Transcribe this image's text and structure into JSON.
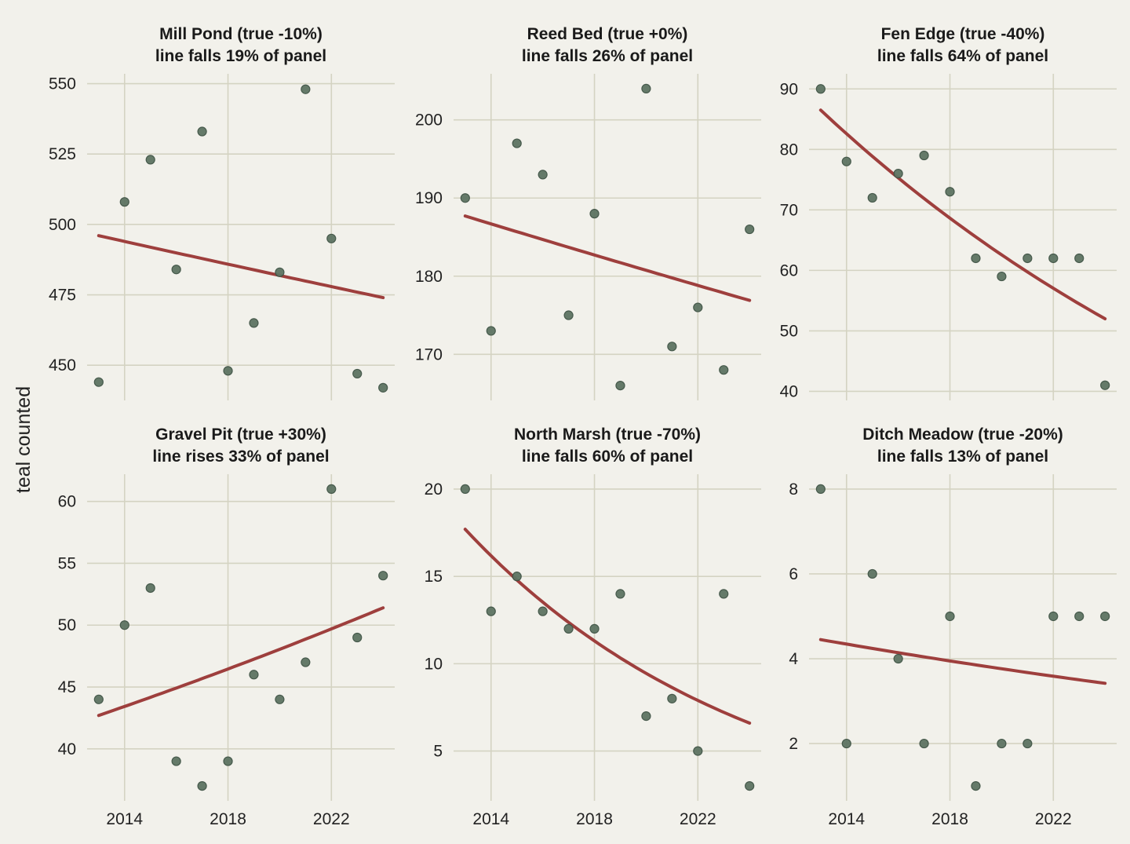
{
  "colors": {
    "background": "#f2f1eb",
    "grid": "#d4d3c2",
    "points": "#5e7463",
    "trend_line": "#9e3f3d"
  },
  "chart_data": {
    "type": "scatter",
    "ylabel": "teal counted",
    "grid": true,
    "x_ticks": [
      2014,
      2018,
      2022
    ],
    "panels": [
      {
        "title": "Mill Pond (true -10%)",
        "subtitle": "line falls 19% of panel",
        "x": [
          2013,
          2014,
          2015,
          2016,
          2017,
          2018,
          2019,
          2020,
          2021,
          2022,
          2023,
          2024
        ],
        "y": [
          444,
          508,
          523,
          484,
          533,
          448,
          465,
          483,
          548,
          495,
          447,
          442
        ],
        "trend": {
          "start": [
            2013,
            496
          ],
          "end": [
            2024,
            474
          ]
        },
        "yticks": [
          450,
          475,
          500,
          525,
          550
        ],
        "ylim": [
          437.5,
          553.5
        ]
      },
      {
        "title": "Reed Bed (true +0%)",
        "subtitle": "line falls 26% of panel",
        "x": [
          2013,
          2014,
          2015,
          2016,
          2017,
          2018,
          2019,
          2020,
          2021,
          2022,
          2023,
          2024
        ],
        "y": [
          190,
          173,
          197,
          193,
          175,
          188,
          166,
          204,
          171,
          176,
          168,
          186
        ],
        "trend": {
          "start": [
            2013,
            187.7
          ],
          "end": [
            2024,
            176.9
          ]
        },
        "yticks": [
          170,
          180,
          190,
          200
        ],
        "ylim": [
          164.1,
          205.9
        ]
      },
      {
        "title": "Fen Edge (true -40%)",
        "subtitle": "line falls 64% of panel",
        "x": [
          2013,
          2014,
          2015,
          2016,
          2017,
          2018,
          2019,
          2020,
          2021,
          2022,
          2023,
          2024
        ],
        "y": [
          90,
          78,
          72,
          76,
          79,
          73,
          62,
          59,
          62,
          62,
          62,
          41
        ],
        "trend": {
          "start": [
            2013,
            86.5
          ],
          "end": [
            2024,
            52
          ]
        },
        "yticks": [
          40,
          50,
          60,
          70,
          80,
          90
        ],
        "ylim": [
          38.5,
          92.5
        ]
      },
      {
        "title": "Gravel Pit (true +30%)",
        "subtitle": "line rises 33% of panel",
        "x": [
          2013,
          2014,
          2015,
          2016,
          2017,
          2018,
          2019,
          2020,
          2021,
          2022,
          2023,
          2024
        ],
        "y": [
          44,
          50,
          53,
          39,
          37,
          39,
          46,
          44,
          47,
          61,
          49,
          54
        ],
        "trend": {
          "start": [
            2013,
            42.7
          ],
          "end": [
            2024,
            51.4
          ]
        },
        "yticks": [
          40,
          45,
          50,
          55,
          60
        ],
        "ylim": [
          35.8,
          62.2
        ]
      },
      {
        "title": "North Marsh (true -70%)",
        "subtitle": "line falls 60% of panel",
        "x": [
          2013,
          2014,
          2015,
          2016,
          2017,
          2018,
          2019,
          2020,
          2021,
          2022,
          2023,
          2024
        ],
        "y": [
          20,
          13,
          15,
          13,
          12,
          12,
          14,
          7,
          8,
          5,
          14,
          3
        ],
        "trend": {
          "start": [
            2013,
            17.7
          ],
          "end": [
            2024,
            6.6
          ]
        },
        "yticks": [
          5,
          10,
          15,
          20
        ],
        "ylim": [
          2.15,
          20.85
        ]
      },
      {
        "title": "Ditch Meadow (true -20%)",
        "subtitle": "line falls 13% of panel",
        "x": [
          2013,
          2014,
          2015,
          2016,
          2017,
          2018,
          2019,
          2020,
          2021,
          2022,
          2023,
          2024
        ],
        "y": [
          8,
          2,
          6,
          4,
          2,
          5,
          1,
          2,
          2,
          5,
          5,
          5
        ],
        "trend": {
          "start": [
            2013,
            4.45
          ],
          "end": [
            2024,
            3.42
          ]
        },
        "yticks": [
          2,
          4,
          6,
          8
        ],
        "ylim": [
          0.65,
          8.35
        ]
      }
    ]
  }
}
